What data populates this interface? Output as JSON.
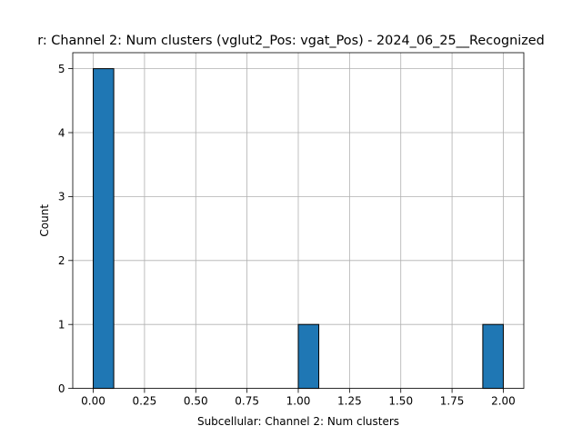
{
  "chart_data": {
    "type": "bar",
    "title": "r: Channel 2: Num clusters (vglut2_Pos: vgat_Pos) - 2024_06_25__Recognized",
    "xlabel": "Subcellular: Channel 2: Num clusters",
    "ylabel": "Count",
    "xlim": [
      -0.1,
      2.1
    ],
    "ylim": [
      0,
      5.25
    ],
    "x_ticks": [
      "0.00",
      "0.25",
      "0.50",
      "0.75",
      "1.00",
      "1.25",
      "1.50",
      "1.75",
      "2.00"
    ],
    "y_ticks": [
      "0",
      "1",
      "2",
      "3",
      "4",
      "5"
    ],
    "bins": [
      {
        "x0": 0.0,
        "x1": 0.1,
        "count": 5
      },
      {
        "x0": 0.1,
        "x1": 0.2,
        "count": 0
      },
      {
        "x0": 0.2,
        "x1": 0.3,
        "count": 0
      },
      {
        "x0": 0.3,
        "x1": 0.4,
        "count": 0
      },
      {
        "x0": 0.4,
        "x1": 0.5,
        "count": 0
      },
      {
        "x0": 0.5,
        "x1": 0.6,
        "count": 0
      },
      {
        "x0": 0.6,
        "x1": 0.7,
        "count": 0
      },
      {
        "x0": 0.7,
        "x1": 0.8,
        "count": 0
      },
      {
        "x0": 0.8,
        "x1": 0.9,
        "count": 0
      },
      {
        "x0": 0.9,
        "x1": 1.0,
        "count": 0
      },
      {
        "x0": 1.0,
        "x1": 1.1,
        "count": 1
      },
      {
        "x0": 1.1,
        "x1": 1.2,
        "count": 0
      },
      {
        "x0": 1.2,
        "x1": 1.3,
        "count": 0
      },
      {
        "x0": 1.3,
        "x1": 1.4,
        "count": 0
      },
      {
        "x0": 1.4,
        "x1": 1.5,
        "count": 0
      },
      {
        "x0": 1.5,
        "x1": 1.6,
        "count": 0
      },
      {
        "x0": 1.6,
        "x1": 1.7,
        "count": 0
      },
      {
        "x0": 1.7,
        "x1": 1.8,
        "count": 0
      },
      {
        "x0": 1.8,
        "x1": 1.9,
        "count": 0
      },
      {
        "x0": 1.9,
        "x1": 2.0,
        "count": 1
      }
    ],
    "grid": true,
    "bar_color": "#1f77b4",
    "edge_color": "#000000"
  }
}
